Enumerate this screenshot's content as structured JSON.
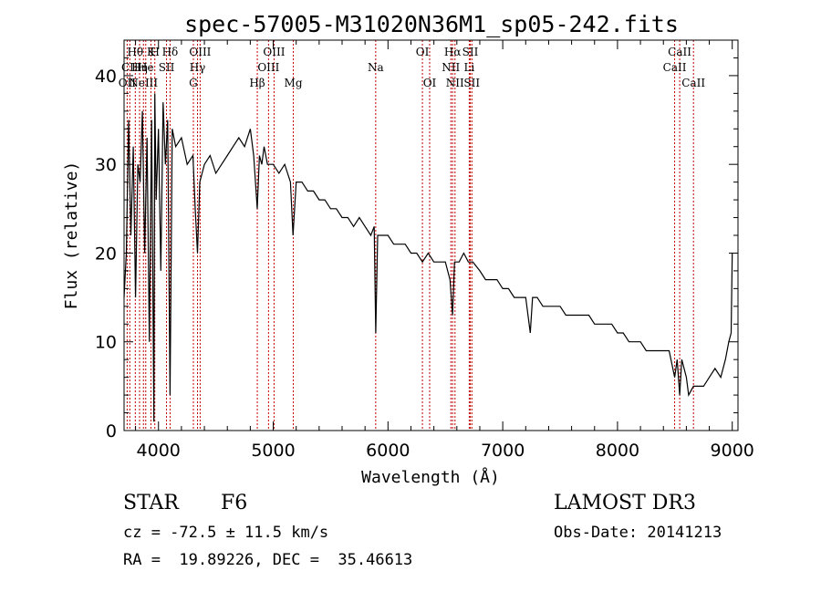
{
  "chart_data": {
    "type": "line",
    "title": "spec-57005-M31020N36M1_sp05-242.fits",
    "xlabel": "Wavelength (Å)",
    "ylabel": "Flux (relative)",
    "xlim": [
      3700,
      9050
    ],
    "ylim": [
      0,
      44
    ],
    "xticks": [
      4000,
      5000,
      6000,
      7000,
      8000,
      9000
    ],
    "yticks": [
      0,
      10,
      20,
      30,
      40
    ],
    "grid": false,
    "series": [
      {
        "name": "spectrum",
        "x": [
          3700,
          3720,
          3740,
          3760,
          3780,
          3800,
          3820,
          3840,
          3860,
          3880,
          3900,
          3920,
          3940,
          3960,
          3968,
          3980,
          4000,
          4020,
          4040,
          4060,
          4080,
          4101,
          4120,
          4150,
          4200,
          4250,
          4300,
          4320,
          4340,
          4360,
          4400,
          4450,
          4500,
          4550,
          4600,
          4650,
          4700,
          4750,
          4800,
          4830,
          4861,
          4880,
          4900,
          4920,
          4950,
          5000,
          5050,
          5100,
          5150,
          5172,
          5200,
          5250,
          5300,
          5350,
          5400,
          5450,
          5500,
          5550,
          5600,
          5650,
          5700,
          5750,
          5800,
          5850,
          5880,
          5893,
          5910,
          5950,
          6000,
          6050,
          6100,
          6150,
          6200,
          6250,
          6300,
          6350,
          6400,
          6450,
          6500,
          6540,
          6563,
          6580,
          6620,
          6660,
          6700,
          6740,
          6800,
          6850,
          6900,
          6950,
          7000,
          7050,
          7100,
          7150,
          7200,
          7240,
          7260,
          7300,
          7350,
          7400,
          7450,
          7500,
          7550,
          7600,
          7650,
          7700,
          7750,
          7800,
          7850,
          7900,
          7950,
          8000,
          8050,
          8100,
          8150,
          8200,
          8250,
          8300,
          8350,
          8400,
          8450,
          8498,
          8520,
          8542,
          8560,
          8600,
          8620,
          8662,
          8700,
          8750,
          8800,
          8850,
          8900,
          8940,
          8970,
          8990,
          9000
        ],
        "y": [
          15,
          20,
          35,
          22,
          32,
          15,
          30,
          28,
          36,
          20,
          33,
          10,
          35,
          1,
          38,
          26,
          34,
          18,
          37,
          30,
          35,
          4,
          34,
          32,
          33,
          30,
          31,
          25,
          20,
          28,
          30,
          31,
          29,
          30,
          31,
          32,
          33,
          32,
          34,
          31,
          25,
          31,
          30,
          32,
          30,
          30,
          29,
          30,
          28,
          22,
          28,
          28,
          27,
          27,
          26,
          26,
          25,
          25,
          24,
          24,
          23,
          24,
          23,
          22,
          23,
          11,
          22,
          22,
          22,
          21,
          21,
          21,
          20,
          20,
          19,
          20,
          19,
          19,
          19,
          17,
          13,
          19,
          19,
          20,
          19,
          19,
          18,
          17,
          17,
          17,
          16,
          16,
          15,
          15,
          15,
          11,
          15,
          15,
          14,
          14,
          14,
          14,
          13,
          13,
          13,
          13,
          13,
          12,
          12,
          12,
          12,
          11,
          11,
          10,
          10,
          10,
          9,
          9,
          9,
          9,
          9,
          6,
          8,
          4,
          8,
          6,
          4,
          5,
          5,
          5,
          6,
          7,
          6,
          8,
          10,
          11,
          20
        ],
        "ylim": [
          0,
          44
        ]
      }
    ],
    "annotations": [
      {
        "label": "OII",
        "x": 3727,
        "row": 3
      },
      {
        "label": "Hθ",
        "x": 3798,
        "row": 1
      },
      {
        "label": "CII",
        "x": 3750,
        "row": 2
      },
      {
        "label": "Hη",
        "x": 3835,
        "row": 2
      },
      {
        "label": "NeIII",
        "x": 3869,
        "row": 3
      },
      {
        "label": "K",
        "x": 3934,
        "row": 1
      },
      {
        "label": "He",
        "x": 3889,
        "row": 2
      },
      {
        "label": "H",
        "x": 3968,
        "row": 1
      },
      {
        "label": "SII",
        "x": 4070,
        "row": 2
      },
      {
        "label": "Hδ",
        "x": 4101,
        "row": 1
      },
      {
        "label": "OIII",
        "x": 4363,
        "row": 1
      },
      {
        "label": "Hγ",
        "x": 4340,
        "row": 2
      },
      {
        "label": "G",
        "x": 4304,
        "row": 3
      },
      {
        "label": "Hβ",
        "x": 4861,
        "row": 3
      },
      {
        "label": "OIII",
        "x": 4959,
        "row": 2
      },
      {
        "label": "OIII",
        "x": 5007,
        "row": 1
      },
      {
        "label": "Mg",
        "x": 5175,
        "row": 3
      },
      {
        "label": "Na",
        "x": 5893,
        "row": 2
      },
      {
        "label": "OI",
        "x": 6300,
        "row": 1
      },
      {
        "label": "OI",
        "x": 6363,
        "row": 3
      },
      {
        "label": "Hα",
        "x": 6563,
        "row": 1
      },
      {
        "label": "NII",
        "x": 6548,
        "row": 2
      },
      {
        "label": "NII",
        "x": 6584,
        "row": 3
      },
      {
        "label": "Li",
        "x": 6708,
        "row": 2
      },
      {
        "label": "SII",
        "x": 6717,
        "row": 1
      },
      {
        "label": "SII",
        "x": 6731,
        "row": 3
      },
      {
        "label": "CaII",
        "x": 8498,
        "row": 2
      },
      {
        "label": "CaII",
        "x": 8542,
        "row": 1
      },
      {
        "label": "CaII",
        "x": 8662,
        "row": 3
      }
    ]
  },
  "info": {
    "class_label": "STAR",
    "subclass": "F6",
    "survey": "LAMOST DR3",
    "redshift": "cz = -72.5 ± 11.5 km/s",
    "obs_date": "Obs-Date: 20141213",
    "coords": "RA =  19.89226, DEC =  35.46613"
  }
}
